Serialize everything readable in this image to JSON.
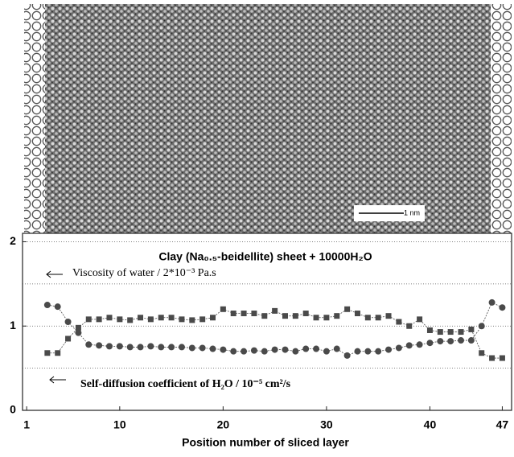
{
  "chart_data": {
    "type": "line",
    "title": "Clay (Na₀.₅-beidellite) sheet + 10000H₂O",
    "x_label": "Position number of sliced layer",
    "scale_bar_label": "1 nm",
    "x": [
      3,
      4,
      5,
      6,
      7,
      8,
      9,
      10,
      11,
      12,
      13,
      14,
      15,
      16,
      17,
      18,
      19,
      20,
      21,
      22,
      23,
      24,
      25,
      26,
      27,
      28,
      29,
      30,
      31,
      32,
      33,
      34,
      35,
      36,
      37,
      38,
      39,
      40,
      41,
      42,
      43,
      44,
      45,
      46,
      47
    ],
    "series": [
      {
        "name": "Viscosity of water / 2*10⁻³ Pa.s",
        "color": "#4a4a4a",
        "marker": "square",
        "values": [
          0.68,
          0.68,
          0.85,
          0.98,
          1.08,
          1.08,
          1.1,
          1.08,
          1.07,
          1.1,
          1.08,
          1.1,
          1.1,
          1.08,
          1.07,
          1.08,
          1.1,
          1.2,
          1.15,
          1.15,
          1.15,
          1.12,
          1.18,
          1.12,
          1.12,
          1.15,
          1.1,
          1.1,
          1.12,
          1.2,
          1.15,
          1.1,
          1.1,
          1.12,
          1.05,
          1.0,
          1.08,
          0.95,
          0.93,
          0.93,
          0.93,
          0.96,
          0.68,
          0.62,
          0.62
        ]
      },
      {
        "name": "Self-diffusion coefficient of H₂O / 10⁻⁵ cm²/s",
        "color": "#4a4a4a",
        "marker": "circle",
        "values": [
          1.25,
          1.23,
          1.05,
          0.92,
          0.78,
          0.77,
          0.76,
          0.76,
          0.75,
          0.75,
          0.76,
          0.75,
          0.75,
          0.75,
          0.74,
          0.74,
          0.73,
          0.72,
          0.7,
          0.7,
          0.71,
          0.7,
          0.72,
          0.72,
          0.7,
          0.73,
          0.73,
          0.7,
          0.73,
          0.65,
          0.7,
          0.7,
          0.7,
          0.72,
          0.74,
          0.77,
          0.78,
          0.8,
          0.82,
          0.82,
          0.83,
          0.83,
          1.0,
          1.28,
          1.22
        ]
      }
    ],
    "xlim": [
      0.6,
      47.9
    ],
    "xticks": [
      1,
      10,
      20,
      30,
      40,
      47
    ],
    "ylim": [
      0,
      2.1
    ],
    "yticks": [
      0,
      1,
      2
    ],
    "grid_lines": [
      0.5,
      1,
      1.5,
      2
    ]
  }
}
